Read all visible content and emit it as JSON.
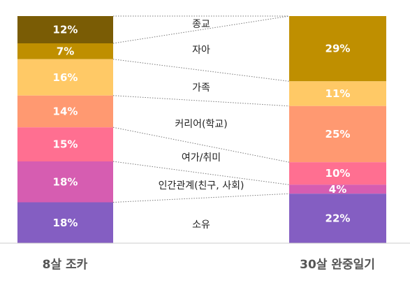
{
  "chart_data": {
    "type": "bar",
    "stacked": true,
    "percent_suffix": "%",
    "columns": [
      "8살 조카",
      "30살 완중일기"
    ],
    "series": [
      {
        "name": "종교",
        "color": "#7a5c05",
        "values": [
          12,
          0
        ]
      },
      {
        "name": "자아",
        "color": "#bf8f00",
        "values": [
          7,
          29
        ]
      },
      {
        "name": "가족",
        "color": "#ffc966",
        "values": [
          16,
          11
        ]
      },
      {
        "name": "커리어(학교)",
        "color": "#ff9971",
        "values": [
          14,
          25
        ]
      },
      {
        "name": "여가/취미",
        "color": "#ff6f91",
        "values": [
          15,
          10
        ]
      },
      {
        "name": "인간관계(친구, 사회)",
        "color": "#d65db1",
        "values": [
          18,
          4
        ]
      },
      {
        "name": "소유",
        "color": "#845ec2",
        "values": [
          18,
          22
        ]
      }
    ],
    "grid": false,
    "legend": "none"
  }
}
